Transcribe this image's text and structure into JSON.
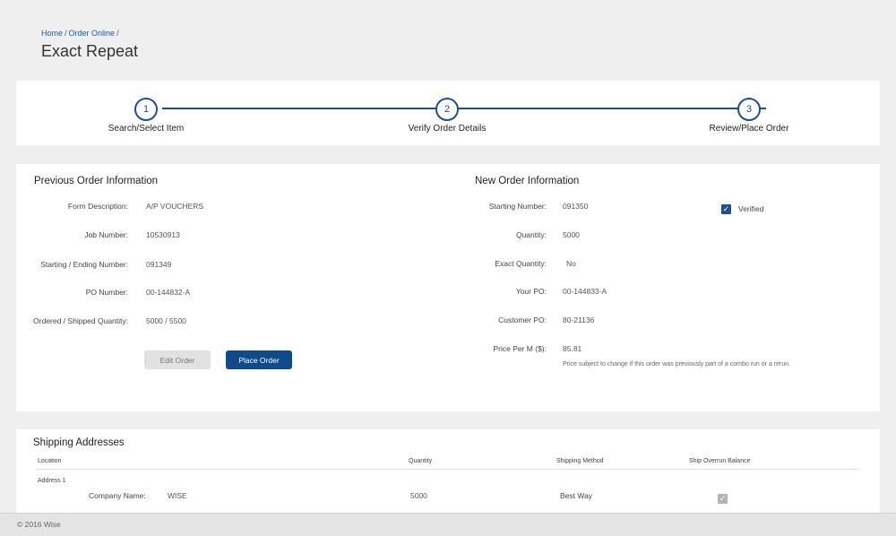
{
  "breadcrumb": {
    "home": "Home",
    "order_online": "Order Online",
    "sep": "/"
  },
  "page_title": "Exact Repeat",
  "steps": [
    {
      "number": "1",
      "label": "Search/Select Item"
    },
    {
      "number": "2",
      "label": "Verify Order Details"
    },
    {
      "number": "3",
      "label": "Review/Place Order"
    }
  ],
  "previous_order": {
    "title": "Previous Order Information",
    "fields": [
      {
        "label": "Form Description:",
        "value": "A/P VOUCHERS"
      },
      {
        "label": "Job Number:",
        "value": "10530913"
      },
      {
        "label": "Starting / Ending Number:",
        "value": "091349"
      },
      {
        "label": "PO Number:",
        "value": "00-144832-A"
      },
      {
        "label": "Ordered / Shipped Quantity:",
        "value": "5000 / 5500"
      }
    ],
    "edit_button": "Edit Order",
    "place_button": "Place Order"
  },
  "new_order": {
    "title": "New Order Information",
    "fields": [
      {
        "label": "Starting Number:",
        "value": "091350"
      },
      {
        "label": "Quantity:",
        "value": "5000"
      },
      {
        "label": "Exact Quantity:",
        "value": "No"
      },
      {
        "label": "Your PO:",
        "value": "00-144833-A"
      },
      {
        "label": "Customer PO:",
        "value": "80-21136"
      },
      {
        "label": "Price Per M ($):",
        "value": "85.81"
      }
    ],
    "price_note": "Price subject to change if this order was previously part of a combo run or a rerun.",
    "verified_label": "Verified",
    "verified_checked": true
  },
  "shipping": {
    "title": "Shipping Addresses",
    "columns": {
      "location": "Location",
      "quantity": "Quantity",
      "method": "Shipping Method",
      "overrun": "Ship Overrun Balance"
    },
    "rows": [
      {
        "address": "Address 1",
        "company_label": "Company Name:",
        "company_value": "WISE",
        "quantity": "5000",
        "method": "Best Way",
        "overrun_checked": true
      }
    ]
  },
  "footer": {
    "copyright": "© 2016 Wise"
  },
  "colors": {
    "accent": "#1d4f91",
    "primary_button": "#0f4a8a",
    "link": "#1d5aa8"
  }
}
